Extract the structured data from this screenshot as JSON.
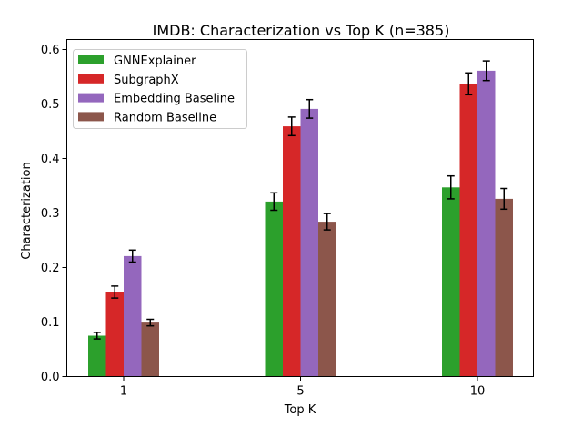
{
  "chart_data": {
    "type": "bar",
    "title": "IMDB: Characterization vs Top K (n=385)",
    "xlabel": "Top K",
    "ylabel": "Characterization",
    "categories": [
      "1",
      "5",
      "10"
    ],
    "ylim": [
      0,
      0.6
    ],
    "yticks": [
      "0.0",
      "0.1",
      "0.2",
      "0.3",
      "0.4",
      "0.5",
      "0.6"
    ],
    "legend_position": "top-left",
    "grid": false,
    "series": [
      {
        "name": "GNNExplainer",
        "color": "#2ca02c",
        "values": [
          0.075,
          0.321,
          0.347
        ],
        "errors": [
          0.006,
          0.016,
          0.021
        ]
      },
      {
        "name": "SubgraphX",
        "color": "#d62728",
        "values": [
          0.155,
          0.459,
          0.537
        ],
        "errors": [
          0.011,
          0.017,
          0.02
        ]
      },
      {
        "name": "Embedding Baseline",
        "color": "#9467bd",
        "values": [
          0.221,
          0.491,
          0.561
        ],
        "errors": [
          0.011,
          0.017,
          0.018
        ]
      },
      {
        "name": "Random Baseline",
        "color": "#8c564b",
        "values": [
          0.099,
          0.284,
          0.326
        ],
        "errors": [
          0.006,
          0.015,
          0.019
        ]
      }
    ]
  }
}
